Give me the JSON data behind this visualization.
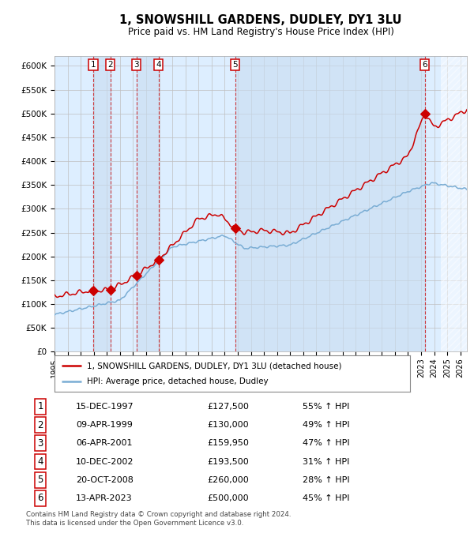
{
  "title": "1, SNOWSHILL GARDENS, DUDLEY, DY1 3LU",
  "subtitle": "Price paid vs. HM Land Registry's House Price Index (HPI)",
  "sales": [
    {
      "num": 1,
      "date": "15-DEC-1997",
      "price": 127500,
      "year": 1997.96,
      "pct": "55%",
      "dir": "↑"
    },
    {
      "num": 2,
      "date": "09-APR-1999",
      "price": 130000,
      "year": 1999.27,
      "pct": "49%",
      "dir": "↑"
    },
    {
      "num": 3,
      "date": "06-APR-2001",
      "price": 159950,
      "year": 2001.26,
      "pct": "47%",
      "dir": "↑"
    },
    {
      "num": 4,
      "date": "10-DEC-2002",
      "price": 193500,
      "year": 2002.94,
      "pct": "31%",
      "dir": "↑"
    },
    {
      "num": 5,
      "date": "20-OCT-2008",
      "price": 260000,
      "year": 2008.8,
      "pct": "28%",
      "dir": "↑"
    },
    {
      "num": 6,
      "date": "13-APR-2023",
      "price": 500000,
      "year": 2023.28,
      "pct": "45%",
      "dir": "↑"
    }
  ],
  "hpi_color": "#7aadd4",
  "price_color": "#cc0000",
  "sale_marker_color": "#cc0000",
  "bg_color": "#ddeeff",
  "grid_color": "#c0c0c0",
  "footer": "Contains HM Land Registry data © Crown copyright and database right 2024.\nThis data is licensed under the Open Government Licence v3.0.",
  "ylim": [
    0,
    620000
  ],
  "xlim_start": 1995.0,
  "xlim_end": 2026.5,
  "yticks": [
    0,
    50000,
    100000,
    150000,
    200000,
    250000,
    300000,
    350000,
    400000,
    450000,
    500000,
    550000,
    600000
  ],
  "ytick_labels": [
    "£0",
    "£50K",
    "£100K",
    "£150K",
    "£200K",
    "£250K",
    "£300K",
    "£350K",
    "£400K",
    "£450K",
    "£500K",
    "£550K",
    "£600K"
  ],
  "legend_label1": "1, SNOWSHILL GARDENS, DUDLEY, DY1 3LU (detached house)",
  "legend_label2": "HPI: Average price, detached house, Dudley"
}
